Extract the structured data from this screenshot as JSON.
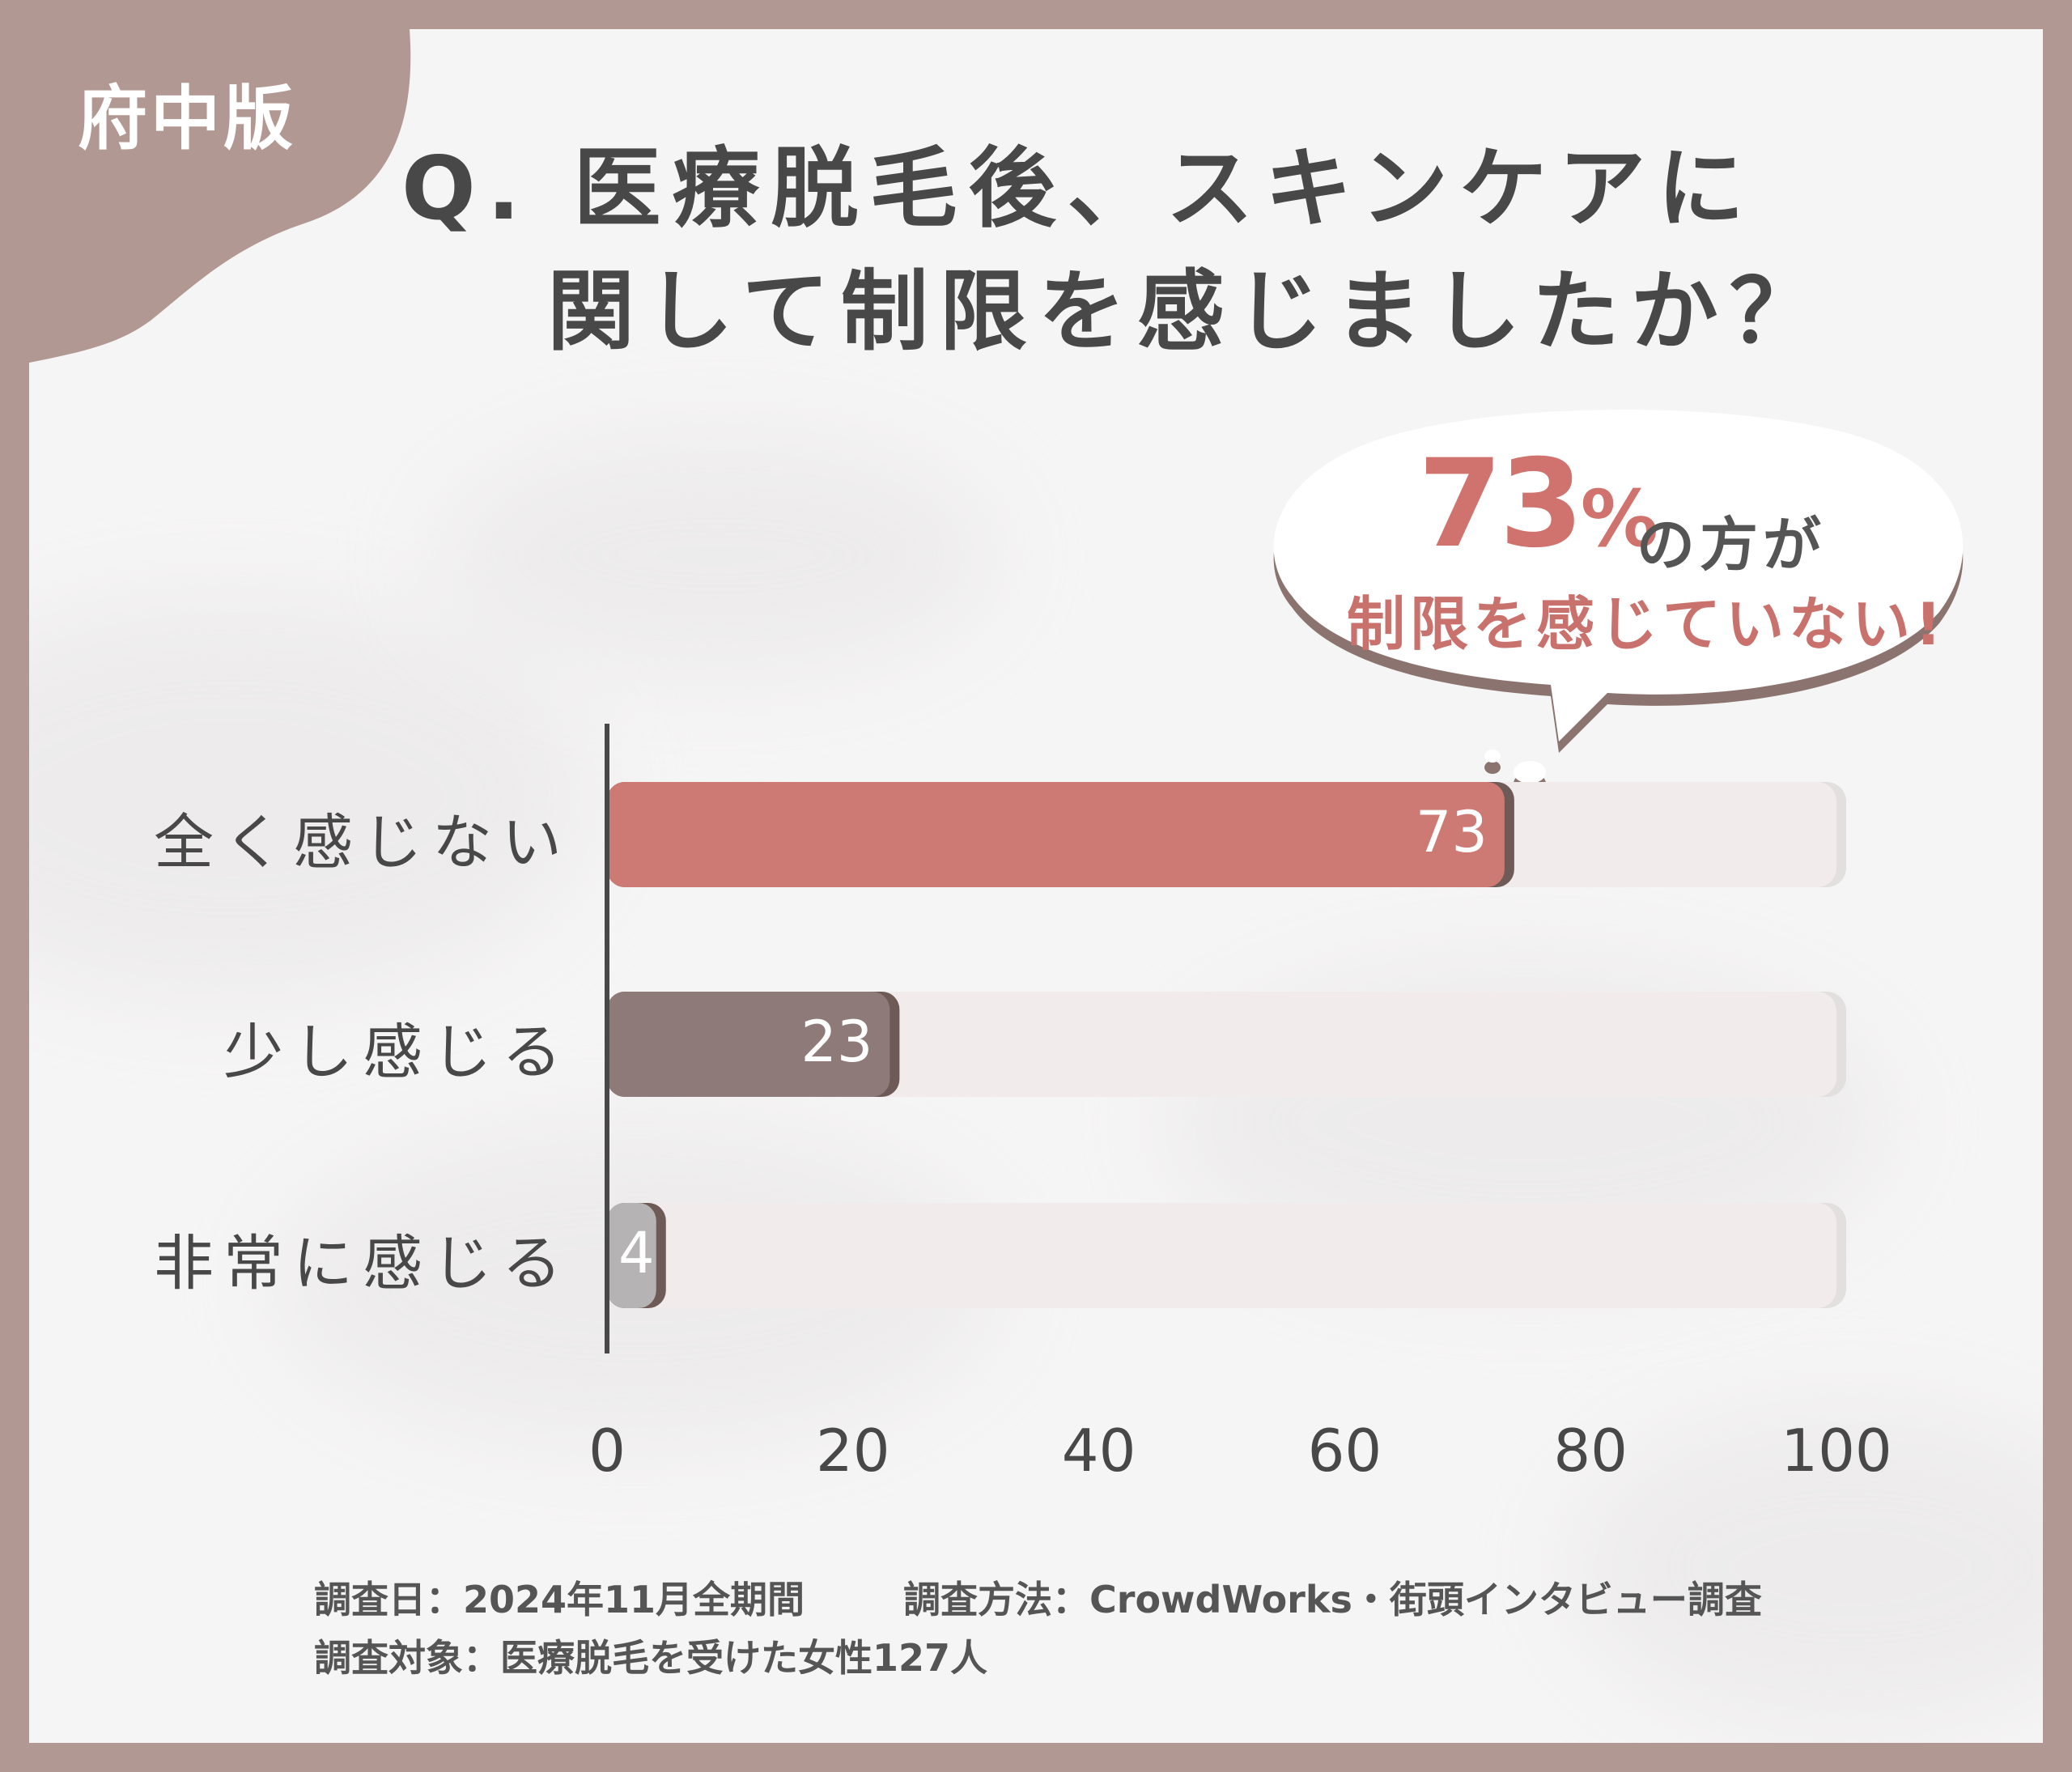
{
  "badge": "府中版",
  "title": {
    "line1": "Q. 医療脱毛後、スキンケアに",
    "line2": "関して制限を感じましたか？"
  },
  "callout": {
    "value": "73",
    "unit": "%",
    "suffix": "の方が",
    "line2": "制限を感じていない!"
  },
  "chart_data": {
    "type": "bar",
    "orientation": "horizontal",
    "categories": [
      "全く感じない",
      "少し感じる",
      "非常に感じる"
    ],
    "values": [
      73,
      23,
      4
    ],
    "value_labels": [
      "73",
      "23",
      "4"
    ],
    "xlim": [
      0,
      100
    ],
    "x_ticks": [
      "0",
      "20",
      "40",
      "60",
      "80",
      "100"
    ],
    "grid": false,
    "colors": [
      "#cd7a75",
      "#8e7a78",
      "#b5b3b3"
    ],
    "track_color": "#f1eceb"
  },
  "footer": {
    "line1_a": "調査日：2024年11月全期間",
    "line1_b": "調査方法：CrowdWorks・街頭インタビュー調査",
    "line2": "調査対象：医療脱毛を受けた女性127人"
  }
}
